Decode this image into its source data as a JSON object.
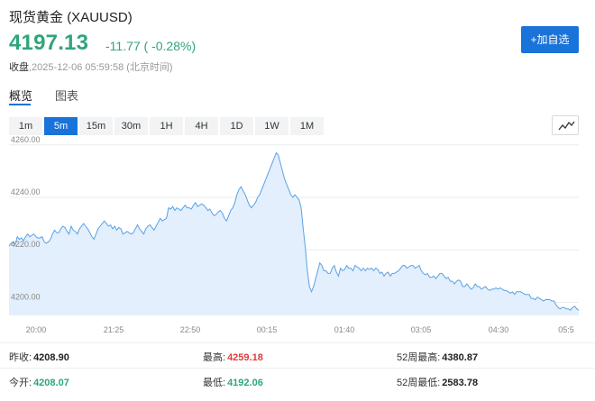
{
  "header": {
    "title": "现货黄金",
    "symbol": "(XAUUSD)",
    "price": "4197.13",
    "change": "-11.77 ( -0.28%)",
    "status_label": "收盘",
    "timestamp": ",2025-12-06 05:59:58 (北京时间)",
    "add_button": "+加自选"
  },
  "tabs": [
    {
      "label": "概览",
      "active": true
    },
    {
      "label": "图表",
      "active": false
    }
  ],
  "periods": [
    {
      "label": "1m",
      "active": false
    },
    {
      "label": "5m",
      "active": true
    },
    {
      "label": "15m",
      "active": false
    },
    {
      "label": "30m",
      "active": false
    },
    {
      "label": "1H",
      "active": false
    },
    {
      "label": "4H",
      "active": false
    },
    {
      "label": "1D",
      "active": false
    },
    {
      "label": "1W",
      "active": false
    },
    {
      "label": "1M",
      "active": false
    }
  ],
  "chart_toggle_icon": "line-chart-icon",
  "colors": {
    "accent": "#1a73d9",
    "down": "#2fa57a",
    "up": "#e03b3b",
    "line": "#5aa1e6",
    "fill": "#e3effc"
  },
  "chart_data": {
    "type": "area",
    "ylim": [
      4195,
      4263
    ],
    "y_ticks": [
      "4260.00",
      "4240.00",
      "4220.00",
      "4200.00"
    ],
    "y_tick_values": [
      4260,
      4240,
      4220,
      4200
    ],
    "x_ticks": [
      "20:00",
      "21:25",
      "22:50",
      "00:15",
      "01:40",
      "03:05",
      "04:30",
      "05:5"
    ],
    "x_tick_positions": [
      0.05,
      0.2,
      0.35,
      0.5,
      0.65,
      0.8,
      0.95,
      1.1
    ],
    "values": [
      4221.5,
      4222.5,
      4223,
      4222,
      4225,
      4224,
      4224.5,
      4223.5,
      4225,
      4226,
      4225,
      4225.5,
      4226,
      4225,
      4224.5,
      4224.5,
      4225,
      4223,
      4222.5,
      4223,
      4224,
      4226,
      4227.5,
      4226.5,
      4226.5,
      4228,
      4229,
      4228.5,
      4227,
      4226,
      4229,
      4227.5,
      4227,
      4226,
      4228,
      4229,
      4230,
      4229,
      4228,
      4226.5,
      4225,
      4224,
      4226,
      4228,
      4229,
      4230,
      4231,
      4230,
      4229,
      4229.5,
      4228,
      4229,
      4227.5,
      4228.5,
      4228,
      4226,
      4226.5,
      4227,
      4226.5,
      4226,
      4226.5,
      4228,
      4229.5,
      4228,
      4227,
      4226,
      4228,
      4229,
      4229.5,
      4228.5,
      4227.5,
      4229,
      4230.5,
      4232,
      4231,
      4231.5,
      4232,
      4236,
      4235.5,
      4236.5,
      4235,
      4236,
      4235.5,
      4235,
      4236,
      4237,
      4236,
      4236,
      4235.5,
      4237,
      4238,
      4236.5,
      4237,
      4237.5,
      4237,
      4236,
      4235,
      4235.5,
      4234,
      4233,
      4233.5,
      4234.5,
      4235,
      4234,
      4232,
      4231,
      4233,
      4235,
      4236,
      4238,
      4241,
      4243,
      4244,
      4242.5,
      4241,
      4239,
      4237,
      4236,
      4237,
      4238,
      4240,
      4241,
      4243,
      4245,
      4247,
      4249,
      4251,
      4253,
      4255,
      4257,
      4256,
      4253,
      4250,
      4247,
      4245,
      4243,
      4241,
      4240,
      4241,
      4240,
      4239,
      4236,
      4228,
      4221,
      4212,
      4206,
      4204,
      4206,
      4209,
      4212,
      4215,
      4214,
      4212,
      4212,
      4211,
      4211,
      4213,
      4214,
      4211.5,
      4210,
      4213,
      4212,
      4212.5,
      4214,
      4213,
      4213,
      4212,
      4214,
      4213.5,
      4213,
      4212,
      4213,
      4212,
      4213,
      4212.5,
      4213,
      4212,
      4213,
      4212.5,
      4211,
      4211.5,
      4210,
      4211,
      4211.5,
      4210,
      4211,
      4211,
      4211.5,
      4212,
      4213,
      4214,
      4214,
      4213,
      4213.5,
      4214,
      4214,
      4213,
      4213.5,
      4214,
      4212,
      4211,
      4210.5,
      4211,
      4209.5,
      4209.5,
      4210,
      4209,
      4210,
      4211,
      4211,
      4210,
      4209,
      4209.5,
      4208,
      4208,
      4207,
      4208,
      4208.5,
      4208,
      4206,
      4206,
      4207,
      4206,
      4205,
      4205.5,
      4207,
      4206,
      4206,
      4205,
      4205.5,
      4206,
      4205,
      4204.5,
      4205,
      4205,
      4205.5,
      4205,
      4205.5,
      4205,
      4204.5,
      4204.5,
      4204,
      4203.5,
      4204,
      4203,
      4204,
      4204,
      4204,
      4203.5,
      4203,
      4203,
      4203,
      4201.5,
      4201.5,
      4201,
      4202,
      4201.5,
      4201,
      4200.5,
      4201,
      4201,
      4201,
      4200.5,
      4200.5,
      4199,
      4198,
      4197.5,
      4198,
      4198,
      4197.5,
      4197.5,
      4197,
      4198,
      4198.5,
      4197.5,
      4197
    ]
  },
  "stats": [
    [
      {
        "label": "昨收:",
        "value": "4208.90",
        "color": "dark"
      },
      {
        "label": "最高:",
        "value": "4259.18",
        "color": "red"
      },
      {
        "label": "52周最高:",
        "value": "4380.87",
        "color": "dark"
      }
    ],
    [
      {
        "label": "今开:",
        "value": "4208.07",
        "color": "green"
      },
      {
        "label": "最低:",
        "value": "4192.06",
        "color": "green"
      },
      {
        "label": "52周最低:",
        "value": "2583.78",
        "color": "dark"
      }
    ]
  ]
}
